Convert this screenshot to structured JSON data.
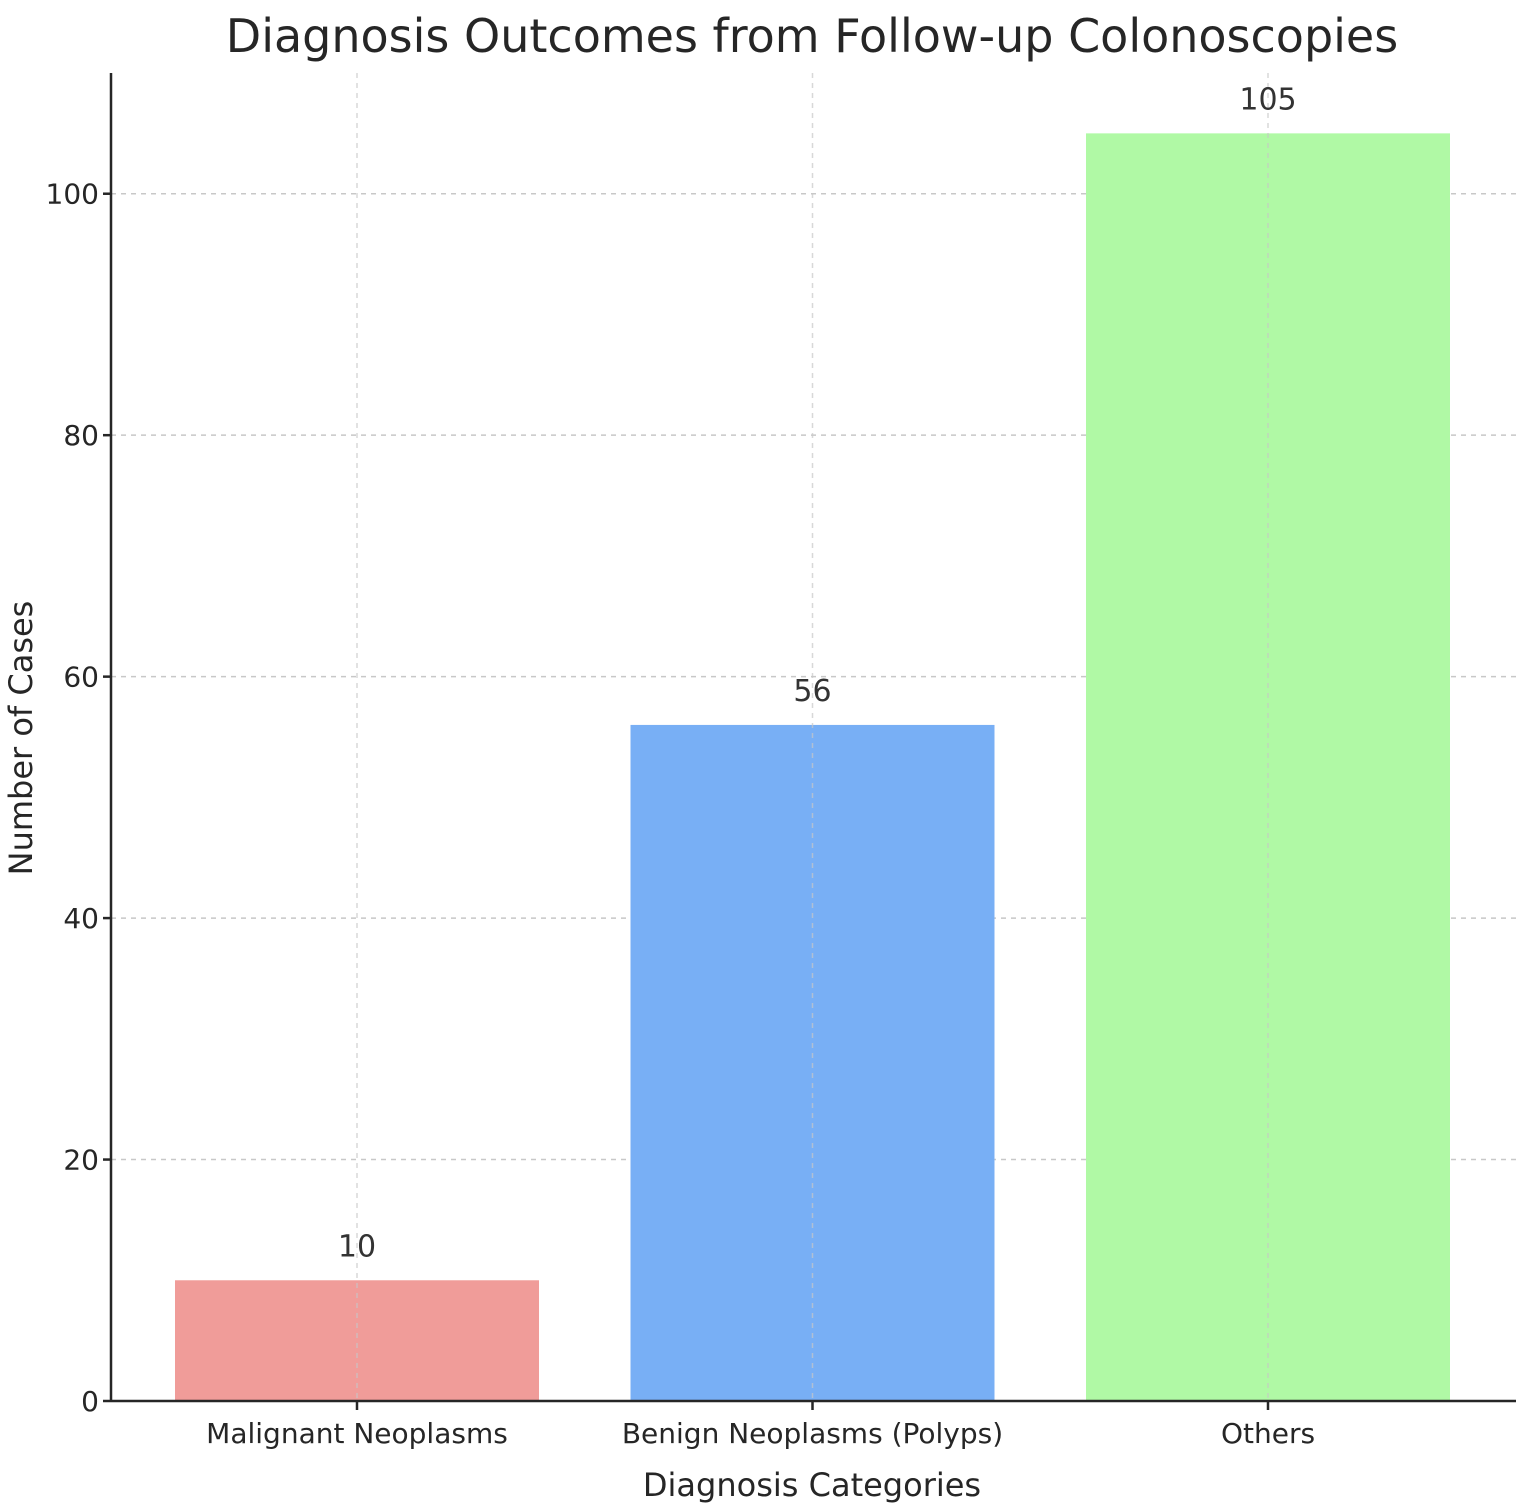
{
  "chart_data": {
    "type": "bar",
    "title": "Diagnosis Outcomes from Follow-up Colonoscopies",
    "xlabel": "Diagnosis Categories",
    "ylabel": "Number of Cases",
    "categories": [
      "Malignant Neoplasms",
      "Benign Neoplasms (Polyps)",
      "Others"
    ],
    "values": [
      10,
      56,
      105
    ],
    "data_labels": [
      "10",
      "56",
      "105"
    ],
    "colors": [
      "#f09c99",
      "#78aff5",
      "#b0f9a5"
    ],
    "ylim": [
      0,
      110
    ],
    "yticks": [
      0,
      20,
      40,
      60,
      80,
      100
    ],
    "grid": true
  }
}
